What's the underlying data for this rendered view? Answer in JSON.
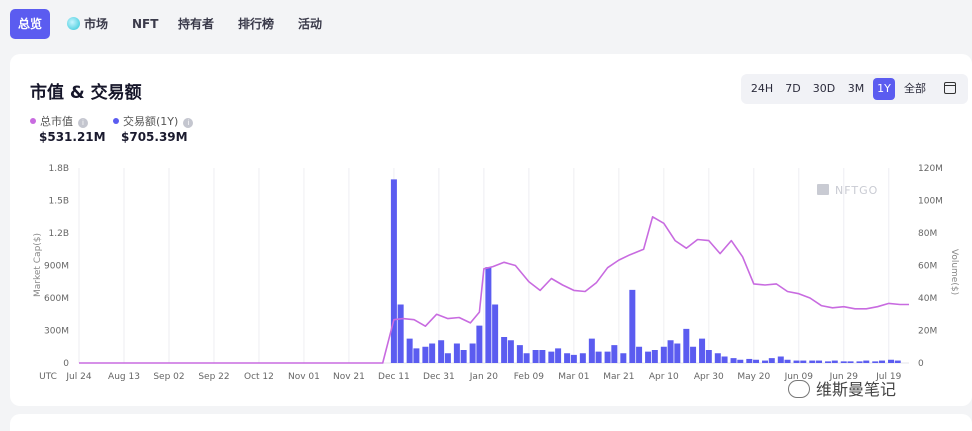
{
  "nav": {
    "items": [
      {
        "label": "总览",
        "active": true
      },
      {
        "label": "市场",
        "icon": "globe-icon"
      },
      {
        "label": "NFT"
      },
      {
        "label": "持有者"
      },
      {
        "label": "排行榜"
      },
      {
        "label": "活动"
      }
    ]
  },
  "card": {
    "title": "市值 & 交易额",
    "ranges": [
      "24H",
      "7D",
      "30D",
      "3M",
      "1Y",
      "全部"
    ],
    "active_range": "1Y",
    "legend": [
      {
        "label": "总市值",
        "value": "$531.21M",
        "color": "#c86be0"
      },
      {
        "label": "交易额(1Y)",
        "value": "$705.39M",
        "color": "#5b5cf0"
      }
    ],
    "watermark": "NFTGO"
  },
  "credit": "维斯曼笔记",
  "chart_data": {
    "type": "bar+line",
    "timezone_label": "UTC",
    "x_tick_labels": [
      "Jul 24",
      "Aug 13",
      "Sep 02",
      "Sep 22",
      "Oct 12",
      "Nov 01",
      "Nov 21",
      "Dec 11",
      "Dec 31",
      "Jan 20",
      "Feb 09",
      "Mar 01",
      "Mar 21",
      "Apr 10",
      "Apr 30",
      "May 20",
      "Jun 09",
      "Jun 29",
      "Jul 19"
    ],
    "left_axis": {
      "label": "Market Cap($)",
      "ticks": [
        "0",
        "300M",
        "600M",
        "900M",
        "1.2B",
        "1.5B",
        "1.8B"
      ],
      "min": 0,
      "max": 1800000000
    },
    "right_axis": {
      "label": "Volume($)",
      "ticks": [
        "0",
        "20M",
        "40M",
        "60M",
        "80M",
        "100M",
        "120M"
      ],
      "min": 0,
      "max": 120000000
    },
    "grid": "vertical",
    "x_range": [
      "2021-07-24",
      "2022-07-28"
    ],
    "market_cap": {
      "name": "总市值",
      "color": "#c86be0",
      "points": [
        [
          "2021-07-24",
          0
        ],
        [
          "2021-12-06",
          0
        ],
        [
          "2021-12-11",
          400000000
        ],
        [
          "2021-12-15",
          410000000
        ],
        [
          "2021-12-20",
          400000000
        ],
        [
          "2021-12-25",
          340000000
        ],
        [
          "2021-12-30",
          450000000
        ],
        [
          "2022-01-04",
          410000000
        ],
        [
          "2022-01-09",
          420000000
        ],
        [
          "2022-01-14",
          370000000
        ],
        [
          "2022-01-18",
          470000000
        ],
        [
          "2022-01-20",
          870000000
        ],
        [
          "2022-01-24",
          890000000
        ],
        [
          "2022-01-29",
          930000000
        ],
        [
          "2022-02-03",
          900000000
        ],
        [
          "2022-02-09",
          750000000
        ],
        [
          "2022-02-14",
          670000000
        ],
        [
          "2022-02-19",
          780000000
        ],
        [
          "2022-02-24",
          720000000
        ],
        [
          "2022-03-01",
          670000000
        ],
        [
          "2022-03-06",
          660000000
        ],
        [
          "2022-03-11",
          740000000
        ],
        [
          "2022-03-16",
          880000000
        ],
        [
          "2022-03-21",
          950000000
        ],
        [
          "2022-03-26",
          1000000000
        ],
        [
          "2022-04-01",
          1050000000
        ],
        [
          "2022-04-05",
          1350000000
        ],
        [
          "2022-04-10",
          1290000000
        ],
        [
          "2022-04-15",
          1130000000
        ],
        [
          "2022-04-20",
          1060000000
        ],
        [
          "2022-04-25",
          1140000000
        ],
        [
          "2022-04-30",
          1130000000
        ],
        [
          "2022-05-05",
          1010000000
        ],
        [
          "2022-05-10",
          1130000000
        ],
        [
          "2022-05-15",
          980000000
        ],
        [
          "2022-05-20",
          730000000
        ],
        [
          "2022-05-25",
          720000000
        ],
        [
          "2022-05-30",
          730000000
        ],
        [
          "2022-06-04",
          660000000
        ],
        [
          "2022-06-09",
          640000000
        ],
        [
          "2022-06-14",
          600000000
        ],
        [
          "2022-06-19",
          530000000
        ],
        [
          "2022-06-24",
          510000000
        ],
        [
          "2022-06-29",
          520000000
        ],
        [
          "2022-07-04",
          500000000
        ],
        [
          "2022-07-09",
          500000000
        ],
        [
          "2022-07-14",
          520000000
        ],
        [
          "2022-07-19",
          550000000
        ],
        [
          "2022-07-24",
          540000000
        ],
        [
          "2022-07-28",
          540000000
        ]
      ]
    },
    "volume": {
      "name": "交易额",
      "color": "#5b5cf0",
      "bars": [
        [
          "2021-12-11",
          113000000
        ],
        [
          "2021-12-14",
          36000000
        ],
        [
          "2021-12-18",
          15000000
        ],
        [
          "2021-12-21",
          9000000
        ],
        [
          "2021-12-25",
          10000000
        ],
        [
          "2021-12-28",
          12000000
        ],
        [
          "2022-01-01",
          14000000
        ],
        [
          "2022-01-04",
          6000000
        ],
        [
          "2022-01-08",
          12000000
        ],
        [
          "2022-01-11",
          8000000
        ],
        [
          "2022-01-15",
          12000000
        ],
        [
          "2022-01-18",
          23000000
        ],
        [
          "2022-01-22",
          59000000
        ],
        [
          "2022-01-25",
          36000000
        ],
        [
          "2022-01-29",
          16000000
        ],
        [
          "2022-02-01",
          14000000
        ],
        [
          "2022-02-05",
          11000000
        ],
        [
          "2022-02-08",
          6000000
        ],
        [
          "2022-02-12",
          8000000
        ],
        [
          "2022-02-15",
          8000000
        ],
        [
          "2022-02-19",
          7000000
        ],
        [
          "2022-02-22",
          9000000
        ],
        [
          "2022-02-26",
          6000000
        ],
        [
          "2022-03-01",
          5000000
        ],
        [
          "2022-03-05",
          6000000
        ],
        [
          "2022-03-09",
          15000000
        ],
        [
          "2022-03-12",
          7000000
        ],
        [
          "2022-03-16",
          7000000
        ],
        [
          "2022-03-19",
          11000000
        ],
        [
          "2022-03-23",
          6000000
        ],
        [
          "2022-03-27",
          45000000
        ],
        [
          "2022-03-30",
          10000000
        ],
        [
          "2022-04-03",
          7000000
        ],
        [
          "2022-04-06",
          8000000
        ],
        [
          "2022-04-10",
          10000000
        ],
        [
          "2022-04-13",
          14000000
        ],
        [
          "2022-04-16",
          12000000
        ],
        [
          "2022-04-20",
          21000000
        ],
        [
          "2022-04-23",
          10000000
        ],
        [
          "2022-04-27",
          15000000
        ],
        [
          "2022-04-30",
          8000000
        ],
        [
          "2022-05-04",
          6000000
        ],
        [
          "2022-05-07",
          4000000
        ],
        [
          "2022-05-11",
          3000000
        ],
        [
          "2022-05-14",
          2000000
        ],
        [
          "2022-05-18",
          2500000
        ],
        [
          "2022-05-21",
          2000000
        ],
        [
          "2022-05-25",
          1500000
        ],
        [
          "2022-05-28",
          3000000
        ],
        [
          "2022-06-01",
          4000000
        ],
        [
          "2022-06-04",
          2000000
        ],
        [
          "2022-06-08",
          1500000
        ],
        [
          "2022-06-11",
          1500000
        ],
        [
          "2022-06-15",
          1500000
        ],
        [
          "2022-06-18",
          1500000
        ],
        [
          "2022-06-22",
          1000000
        ],
        [
          "2022-06-25",
          1500000
        ],
        [
          "2022-06-29",
          1000000
        ],
        [
          "2022-07-02",
          1000000
        ],
        [
          "2022-07-06",
          1000000
        ],
        [
          "2022-07-09",
          1500000
        ],
        [
          "2022-07-13",
          1000000
        ],
        [
          "2022-07-16",
          1500000
        ],
        [
          "2022-07-20",
          2000000
        ],
        [
          "2022-07-23",
          1500000
        ]
      ]
    }
  }
}
